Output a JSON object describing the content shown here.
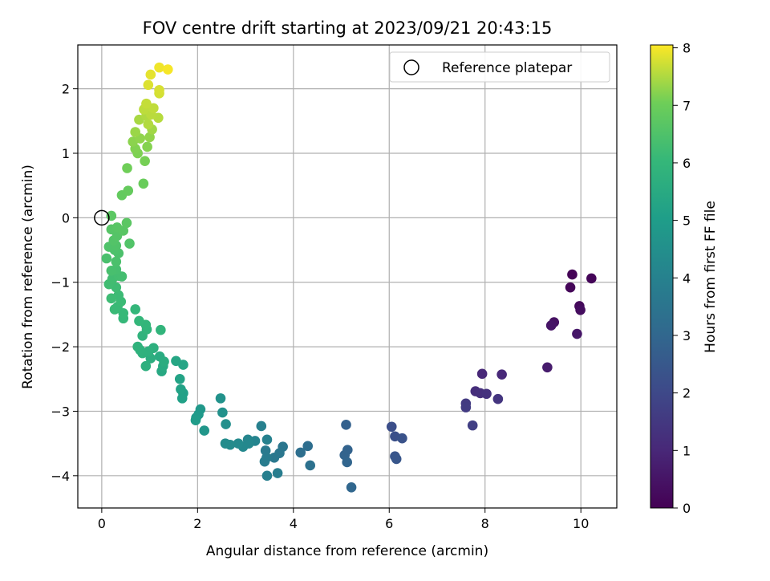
{
  "chart_data": {
    "type": "scatter",
    "title": "FOV centre drift starting at 2023/09/21 20:43:15",
    "xlabel": "Angular distance from reference (arcmin)",
    "ylabel": "Rotation from reference (arcmin)",
    "xlim": [
      -0.5,
      10.75
    ],
    "ylim": [
      -4.5,
      2.68
    ],
    "x_ticks": [
      0,
      2,
      4,
      6,
      8,
      10
    ],
    "y_ticks": [
      -4,
      -3,
      -2,
      -1,
      0,
      1,
      2
    ],
    "grid": true,
    "legend": {
      "placement": "top-right",
      "entries": [
        "Reference platepar"
      ]
    },
    "reference_point": {
      "x": 0,
      "y": 0,
      "label": "Reference platepar"
    },
    "colorbar": {
      "label": "Hours from first FF file",
      "range": [
        0,
        8.05
      ],
      "ticks": [
        0,
        1,
        2,
        3,
        4,
        5,
        6,
        7,
        8
      ],
      "colormap": "viridis"
    },
    "points": [
      [
        9.82,
        -0.88,
        0.05
      ],
      [
        10.22,
        -0.94,
        0.1
      ],
      [
        9.78,
        -1.08,
        0.15
      ],
      [
        9.97,
        -1.37,
        0.2
      ],
      [
        9.99,
        -1.43,
        0.3
      ],
      [
        9.44,
        -1.62,
        0.4
      ],
      [
        9.38,
        -1.67,
        0.5
      ],
      [
        9.92,
        -1.8,
        0.55
      ],
      [
        9.3,
        -2.32,
        0.7
      ],
      [
        7.94,
        -2.42,
        1.0
      ],
      [
        8.35,
        -2.43,
        1.05
      ],
      [
        7.8,
        -2.69,
        1.2
      ],
      [
        7.9,
        -2.72,
        1.25
      ],
      [
        8.03,
        -2.73,
        1.3
      ],
      [
        8.27,
        -2.81,
        1.4
      ],
      [
        7.6,
        -2.88,
        1.55
      ],
      [
        7.6,
        -2.94,
        1.6
      ],
      [
        7.74,
        -3.22,
        1.7
      ],
      [
        6.05,
        -3.24,
        2.2
      ],
      [
        6.12,
        -3.39,
        2.25
      ],
      [
        6.27,
        -3.42,
        2.3
      ],
      [
        6.12,
        -3.7,
        2.4
      ],
      [
        6.15,
        -3.74,
        2.45
      ],
      [
        5.1,
        -3.21,
        2.8
      ],
      [
        5.13,
        -3.6,
        2.85
      ],
      [
        5.07,
        -3.68,
        2.9
      ],
      [
        5.12,
        -3.79,
        2.95
      ],
      [
        5.21,
        -4.18,
        3.0
      ],
      [
        4.3,
        -3.54,
        3.25
      ],
      [
        4.15,
        -3.64,
        3.3
      ],
      [
        4.35,
        -3.84,
        3.35
      ],
      [
        3.78,
        -3.55,
        3.55
      ],
      [
        3.71,
        -3.65,
        3.6
      ],
      [
        3.6,
        -3.72,
        3.65
      ],
      [
        3.42,
        -3.61,
        3.7
      ],
      [
        3.44,
        -3.72,
        3.75
      ],
      [
        3.4,
        -3.78,
        3.8
      ],
      [
        3.67,
        -3.96,
        3.85
      ],
      [
        3.45,
        -4.0,
        3.9
      ],
      [
        3.33,
        -3.23,
        3.95
      ],
      [
        3.45,
        -3.44,
        4.0
      ],
      [
        3.2,
        -3.46,
        4.1
      ],
      [
        3.05,
        -3.44,
        4.15
      ],
      [
        3.07,
        -3.5,
        4.2
      ],
      [
        2.95,
        -3.55,
        4.25
      ],
      [
        2.85,
        -3.5,
        4.3
      ],
      [
        2.68,
        -3.52,
        4.35
      ],
      [
        2.58,
        -3.5,
        4.4
      ],
      [
        2.59,
        -3.2,
        4.5
      ],
      [
        2.52,
        -3.02,
        4.55
      ],
      [
        2.48,
        -2.8,
        4.6
      ],
      [
        2.14,
        -3.3,
        4.75
      ],
      [
        2.06,
        -2.97,
        4.8
      ],
      [
        2.02,
        -3.05,
        4.85
      ],
      [
        1.97,
        -3.1,
        4.9
      ],
      [
        1.96,
        -3.14,
        4.95
      ],
      [
        1.7,
        -2.72,
        5.1
      ],
      [
        1.68,
        -2.8,
        5.15
      ],
      [
        1.65,
        -2.66,
        5.2
      ],
      [
        1.63,
        -2.5,
        5.25
      ],
      [
        1.7,
        -2.28,
        5.3
      ],
      [
        1.55,
        -2.22,
        5.35
      ],
      [
        1.25,
        -2.38,
        5.45
      ],
      [
        1.28,
        -2.3,
        5.5
      ],
      [
        1.21,
        -2.15,
        5.55
      ],
      [
        1.3,
        -2.23,
        5.6
      ],
      [
        1.02,
        -2.18,
        5.65
      ],
      [
        0.92,
        -2.3,
        5.7
      ],
      [
        1.08,
        -2.02,
        5.7
      ],
      [
        0.98,
        -2.07,
        5.75
      ],
      [
        0.85,
        -2.1,
        5.78
      ],
      [
        0.8,
        -2.05,
        5.8
      ],
      [
        0.75,
        -2.0,
        5.82
      ],
      [
        0.85,
        -1.83,
        5.85
      ],
      [
        0.94,
        -1.73,
        5.9
      ],
      [
        1.23,
        -1.74,
        5.92
      ],
      [
        0.92,
        -1.66,
        5.95
      ],
      [
        0.78,
        -1.6,
        5.98
      ],
      [
        0.7,
        -1.42,
        6.0
      ],
      [
        0.45,
        -1.56,
        6.05
      ],
      [
        0.45,
        -1.48,
        6.08
      ],
      [
        0.33,
        -1.38,
        6.1
      ],
      [
        0.27,
        -1.42,
        6.12
      ],
      [
        0.4,
        -1.3,
        6.15
      ],
      [
        0.35,
        -1.2,
        6.17
      ],
      [
        0.2,
        -1.25,
        6.2
      ],
      [
        0.3,
        -1.08,
        6.22
      ],
      [
        0.15,
        -1.03,
        6.25
      ],
      [
        0.22,
        -0.95,
        6.27
      ],
      [
        0.35,
        -0.9,
        6.3
      ],
      [
        0.42,
        -0.91,
        6.32
      ],
      [
        0.3,
        -0.8,
        6.35
      ],
      [
        0.2,
        -0.82,
        6.38
      ],
      [
        0.1,
        -0.63,
        6.4
      ],
      [
        0.3,
        -0.68,
        6.42
      ],
      [
        0.35,
        -0.55,
        6.45
      ],
      [
        0.27,
        -0.5,
        6.47
      ],
      [
        0.15,
        -0.45,
        6.5
      ],
      [
        0.3,
        -0.43,
        6.52
      ],
      [
        0.58,
        -0.4,
        6.55
      ],
      [
        0.25,
        -0.35,
        6.57
      ],
      [
        0.32,
        -0.28,
        6.6
      ],
      [
        0.2,
        -0.18,
        6.62
      ],
      [
        0.32,
        -0.15,
        6.65
      ],
      [
        0.45,
        -0.2,
        6.67
      ],
      [
        0.52,
        -0.08,
        6.7
      ],
      [
        0.2,
        0.03,
        6.72
      ],
      [
        0.42,
        0.35,
        6.85
      ],
      [
        0.55,
        0.42,
        6.88
      ],
      [
        0.87,
        0.53,
        6.95
      ],
      [
        0.53,
        0.77,
        7.05
      ],
      [
        0.9,
        0.88,
        7.1
      ],
      [
        0.75,
        1.0,
        7.15
      ],
      [
        0.7,
        1.07,
        7.18
      ],
      [
        0.95,
        1.1,
        7.2
      ],
      [
        0.65,
        1.18,
        7.25
      ],
      [
        0.8,
        1.23,
        7.28
      ],
      [
        1.0,
        1.25,
        7.3
      ],
      [
        0.7,
        1.33,
        7.35
      ],
      [
        1.05,
        1.37,
        7.4
      ],
      [
        0.78,
        1.52,
        7.45
      ],
      [
        0.93,
        1.58,
        7.5
      ],
      [
        0.97,
        1.45,
        7.52
      ],
      [
        1.18,
        1.55,
        7.55
      ],
      [
        1.03,
        1.6,
        7.58
      ],
      [
        0.88,
        1.68,
        7.6
      ],
      [
        1.08,
        1.7,
        7.62
      ],
      [
        0.93,
        1.77,
        7.65
      ],
      [
        1.2,
        1.93,
        7.75
      ],
      [
        1.2,
        1.98,
        7.78
      ],
      [
        0.97,
        2.06,
        7.82
      ],
      [
        1.02,
        2.22,
        7.88
      ],
      [
        1.2,
        2.33,
        7.95
      ],
      [
        1.38,
        2.3,
        8.0
      ]
    ]
  }
}
